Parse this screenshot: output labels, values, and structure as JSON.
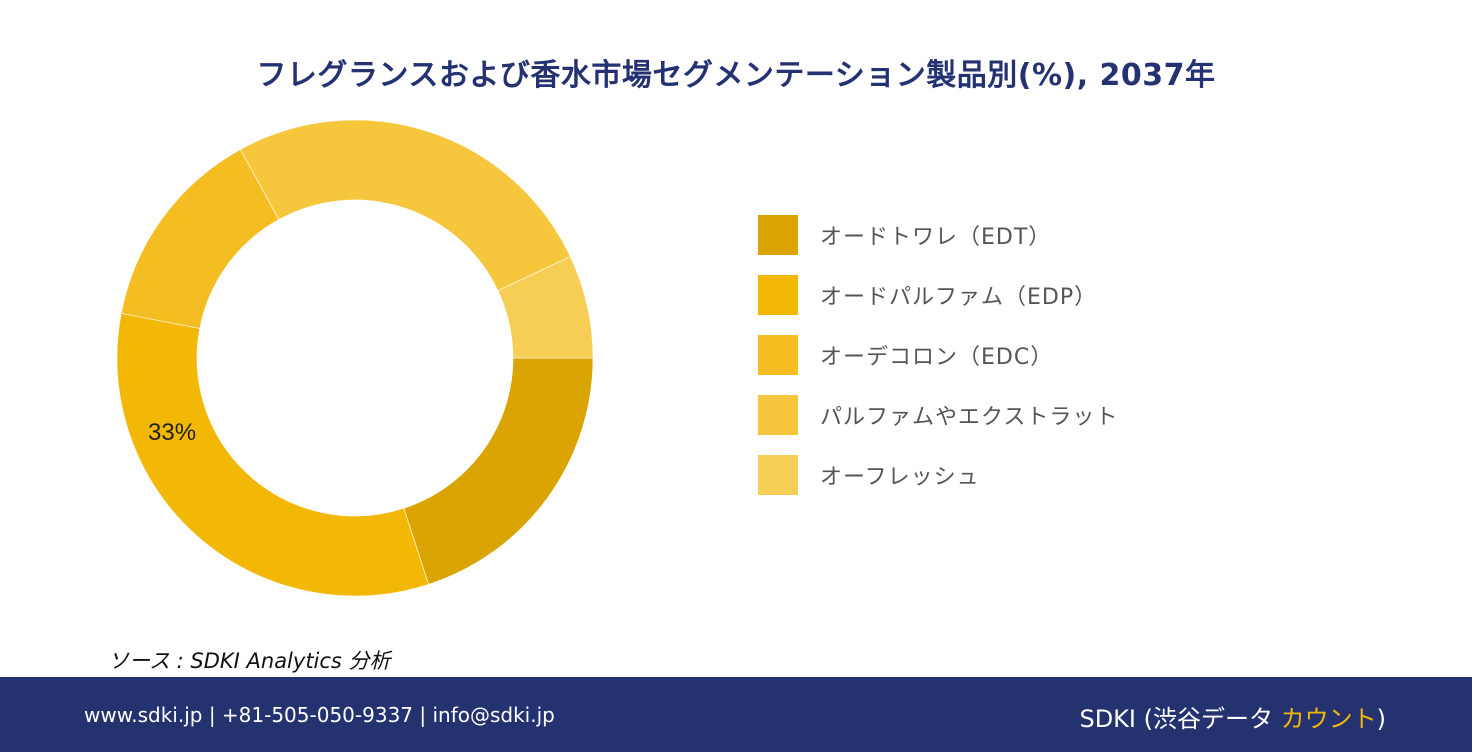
{
  "title": "フレグランスおよび香水市場セグメンテーション製品別(%), 2037年",
  "chart_data": {
    "type": "pie",
    "title": "フレグランスおよび香水市場セグメンテーション製品別(%), 2037年",
    "donut": true,
    "categories": [
      "オードトワレ（EDT）",
      "オードパルファム（EDP）",
      "オーデコロン（EDC）",
      "パルファムやエクストラット",
      "オーフレッシュ"
    ],
    "values": [
      20,
      33,
      14,
      26,
      7
    ],
    "colors": [
      "#DAA503",
      "#F3B705",
      "#F4BD21",
      "#F6C63D",
      "#F6CD55"
    ],
    "data_labels": [
      {
        "category": "オードパルファム（EDP）",
        "text": "33%"
      }
    ],
    "legend_position": "right"
  },
  "source_text": "ソース : SDKI Analytics 分析",
  "footer": {
    "contact": "www.sdki.jp | +81-505-050-9337 | info@sdki.jp",
    "brand_prefix": "SDKI (渋谷データ ",
    "brand_accent": "カウント",
    "brand_suffix": ")"
  }
}
